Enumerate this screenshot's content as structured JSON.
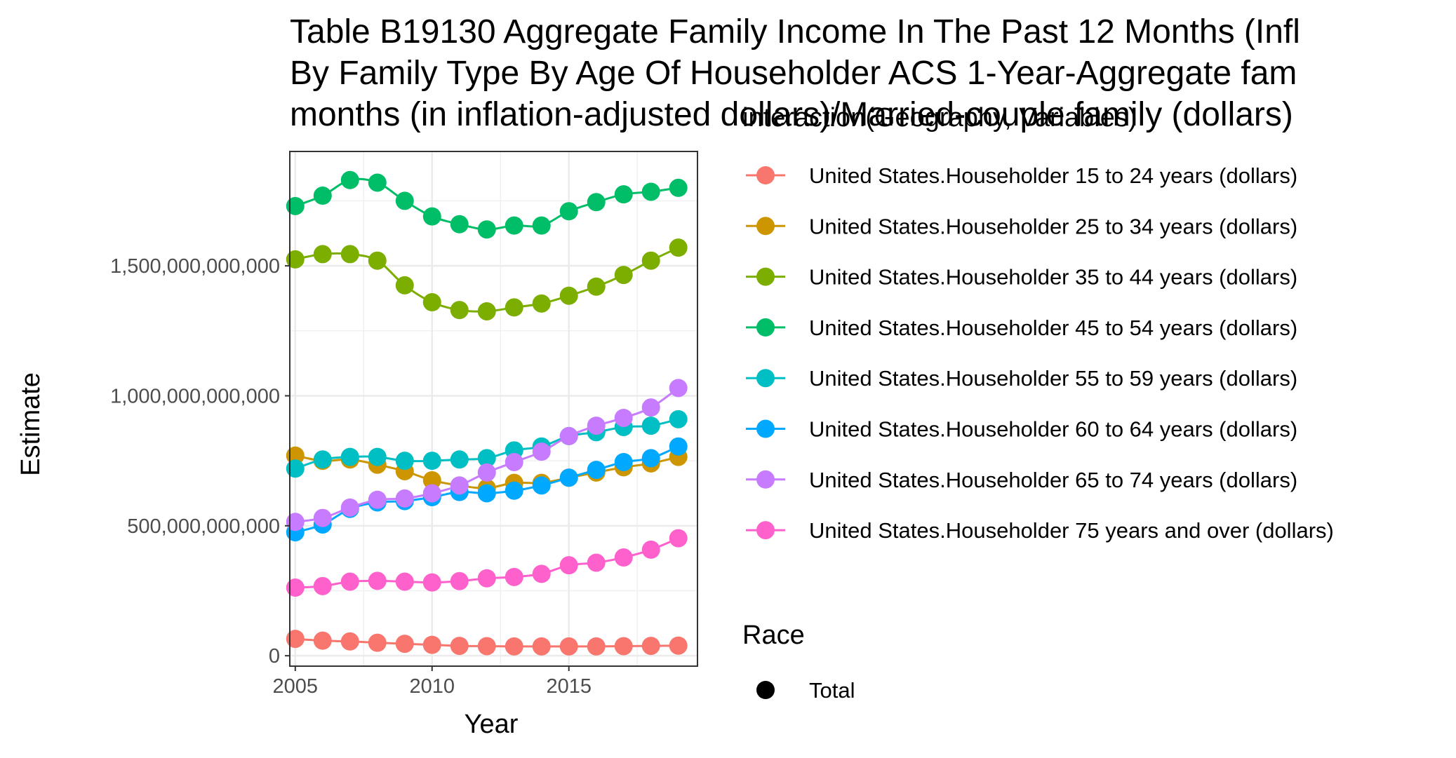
{
  "title_lines": [
    "Table B19130 Aggregate Family Income In The Past 12 Months (Infl",
    "By Family Type By Age Of Householder ACS 1-Year-Aggregate fam",
    "months (in inflation-adjusted dollars)/Married-couple family (dollars)"
  ],
  "chart_data": {
    "type": "line",
    "title": "Table B19130 Aggregate Family Income In The Past 12 Months (Infl By Family Type By Age Of Householder ACS 1-Year-Aggregate fam months (in inflation-adjusted dollars)/Married-couple family (dollars)",
    "xlabel": "Year",
    "ylabel": "Estimate",
    "x": [
      2005,
      2006,
      2007,
      2008,
      2009,
      2010,
      2011,
      2012,
      2013,
      2014,
      2015,
      2016,
      2017,
      2018,
      2019
    ],
    "xlim": [
      2004.8,
      2019.7
    ],
    "ylim": [
      -40000000000,
      1940000000000
    ],
    "x_ticks": [
      2005,
      2010,
      2015
    ],
    "x_tick_labels": [
      "2005",
      "2010",
      "2015"
    ],
    "y_ticks": [
      0,
      500000000000,
      1000000000000,
      1500000000000
    ],
    "y_tick_labels": [
      "0",
      "500,000,000,000",
      "1,000,000,000,000",
      "1,500,000,000,000"
    ],
    "grid": true,
    "legend_position": "right",
    "legend_color_title": "interaction(Geography, Variables)",
    "legend_shape_title": "Race",
    "legend_shape_items": [
      "Total"
    ],
    "series": [
      {
        "name": "United States.Householder 15 to 24 years (dollars)",
        "color": "#F8766D",
        "values": [
          65000000000,
          58000000000,
          55000000000,
          50000000000,
          46000000000,
          42000000000,
          38000000000,
          37000000000,
          36000000000,
          36000000000,
          36000000000,
          36000000000,
          37000000000,
          38000000000,
          39000000000
        ]
      },
      {
        "name": "United States.Householder 25 to 34 years (dollars)",
        "color": "#CD9600",
        "values": [
          770000000000,
          750000000000,
          755000000000,
          735000000000,
          710000000000,
          675000000000,
          655000000000,
          645000000000,
          665000000000,
          665000000000,
          685000000000,
          705000000000,
          725000000000,
          740000000000,
          765000000000
        ]
      },
      {
        "name": "United States.Householder 35 to 44 years (dollars)",
        "color": "#7CAE00",
        "values": [
          1525000000000,
          1545000000000,
          1545000000000,
          1520000000000,
          1425000000000,
          1360000000000,
          1330000000000,
          1325000000000,
          1340000000000,
          1355000000000,
          1385000000000,
          1420000000000,
          1465000000000,
          1520000000000,
          1570000000000
        ]
      },
      {
        "name": "United States.Householder 45 to 54 years (dollars)",
        "color": "#00BE67",
        "values": [
          1730000000000,
          1770000000000,
          1830000000000,
          1820000000000,
          1750000000000,
          1690000000000,
          1660000000000,
          1640000000000,
          1655000000000,
          1655000000000,
          1710000000000,
          1745000000000,
          1775000000000,
          1785000000000,
          1800000000000
        ]
      },
      {
        "name": "United States.Householder 55 to 59 years (dollars)",
        "color": "#00BFC4",
        "values": [
          720000000000,
          755000000000,
          765000000000,
          765000000000,
          750000000000,
          750000000000,
          755000000000,
          760000000000,
          790000000000,
          805000000000,
          845000000000,
          860000000000,
          880000000000,
          885000000000,
          910000000000
        ]
      },
      {
        "name": "United States.Householder 60 to 64 years (dollars)",
        "color": "#00A9FF",
        "values": [
          475000000000,
          505000000000,
          565000000000,
          590000000000,
          595000000000,
          610000000000,
          630000000000,
          625000000000,
          635000000000,
          655000000000,
          685000000000,
          715000000000,
          745000000000,
          760000000000,
          805000000000
        ]
      },
      {
        "name": "United States.Householder 65 to 74 years (dollars)",
        "color": "#C77CFF",
        "values": [
          515000000000,
          530000000000,
          570000000000,
          600000000000,
          605000000000,
          625000000000,
          655000000000,
          705000000000,
          745000000000,
          785000000000,
          845000000000,
          885000000000,
          915000000000,
          955000000000,
          1030000000000
        ]
      },
      {
        "name": "United States.Householder 75 years and over (dollars)",
        "color": "#FF61CC",
        "values": [
          262000000000,
          268000000000,
          285000000000,
          288000000000,
          285000000000,
          282000000000,
          287000000000,
          298000000000,
          303000000000,
          315000000000,
          348000000000,
          358000000000,
          378000000000,
          408000000000,
          452000000000
        ]
      }
    ]
  }
}
